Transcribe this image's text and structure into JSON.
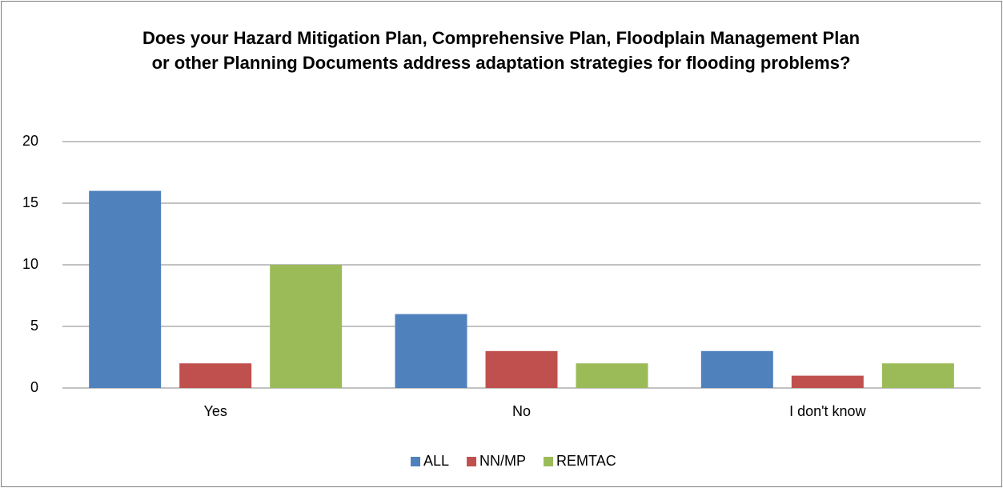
{
  "chart_data": {
    "type": "bar",
    "title": "Does your Hazard Mitigation Plan, Comprehensive Plan, Floodplain Management Plan or other Planning Documents address adaptation strategies for flooding problems?",
    "categories": [
      "Yes",
      "No",
      "I don't know"
    ],
    "series": [
      {
        "name": "ALL",
        "color": "#4f81bd",
        "values": [
          16,
          6,
          3
        ]
      },
      {
        "name": "NN/MP",
        "color": "#c0504d",
        "values": [
          2,
          3,
          1
        ]
      },
      {
        "name": "REMTAC",
        "color": "#9bbb59",
        "values": [
          10,
          2,
          2
        ]
      }
    ],
    "ylim": [
      0,
      20
    ],
    "yticks": [
      0,
      5,
      10,
      15,
      20
    ],
    "grid": true,
    "legend": "bottom"
  }
}
